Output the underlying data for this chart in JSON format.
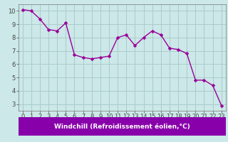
{
  "x": [
    0,
    1,
    2,
    3,
    4,
    5,
    6,
    7,
    8,
    9,
    10,
    11,
    12,
    13,
    14,
    15,
    16,
    17,
    18,
    19,
    20,
    21,
    22,
    23
  ],
  "y": [
    10.1,
    10.0,
    9.4,
    8.6,
    8.5,
    9.1,
    6.7,
    6.5,
    6.4,
    6.5,
    6.6,
    8.0,
    8.2,
    7.4,
    8.0,
    8.5,
    8.2,
    7.2,
    7.1,
    6.8,
    4.8,
    4.8,
    4.4,
    2.9
  ],
  "line_color": "#990099",
  "marker": "D",
  "marker_size": 2.5,
  "bg_color": "#cce8e8",
  "grid_color": "#aacccc",
  "xlabel": "Windchill (Refroidissement éolien,°C)",
  "xlim": [
    -0.5,
    23.5
  ],
  "ylim": [
    2.5,
    10.5
  ],
  "xticks": [
    0,
    1,
    2,
    3,
    4,
    5,
    6,
    7,
    8,
    9,
    10,
    11,
    12,
    13,
    14,
    15,
    16,
    17,
    18,
    19,
    20,
    21,
    22,
    23
  ],
  "yticks": [
    3,
    4,
    5,
    6,
    7,
    8,
    9,
    10
  ],
  "xlabel_bg": "#8800aa",
  "tick_color": "#444444",
  "axis_label_fontsize": 6.5,
  "tick_fontsize": 6.0
}
